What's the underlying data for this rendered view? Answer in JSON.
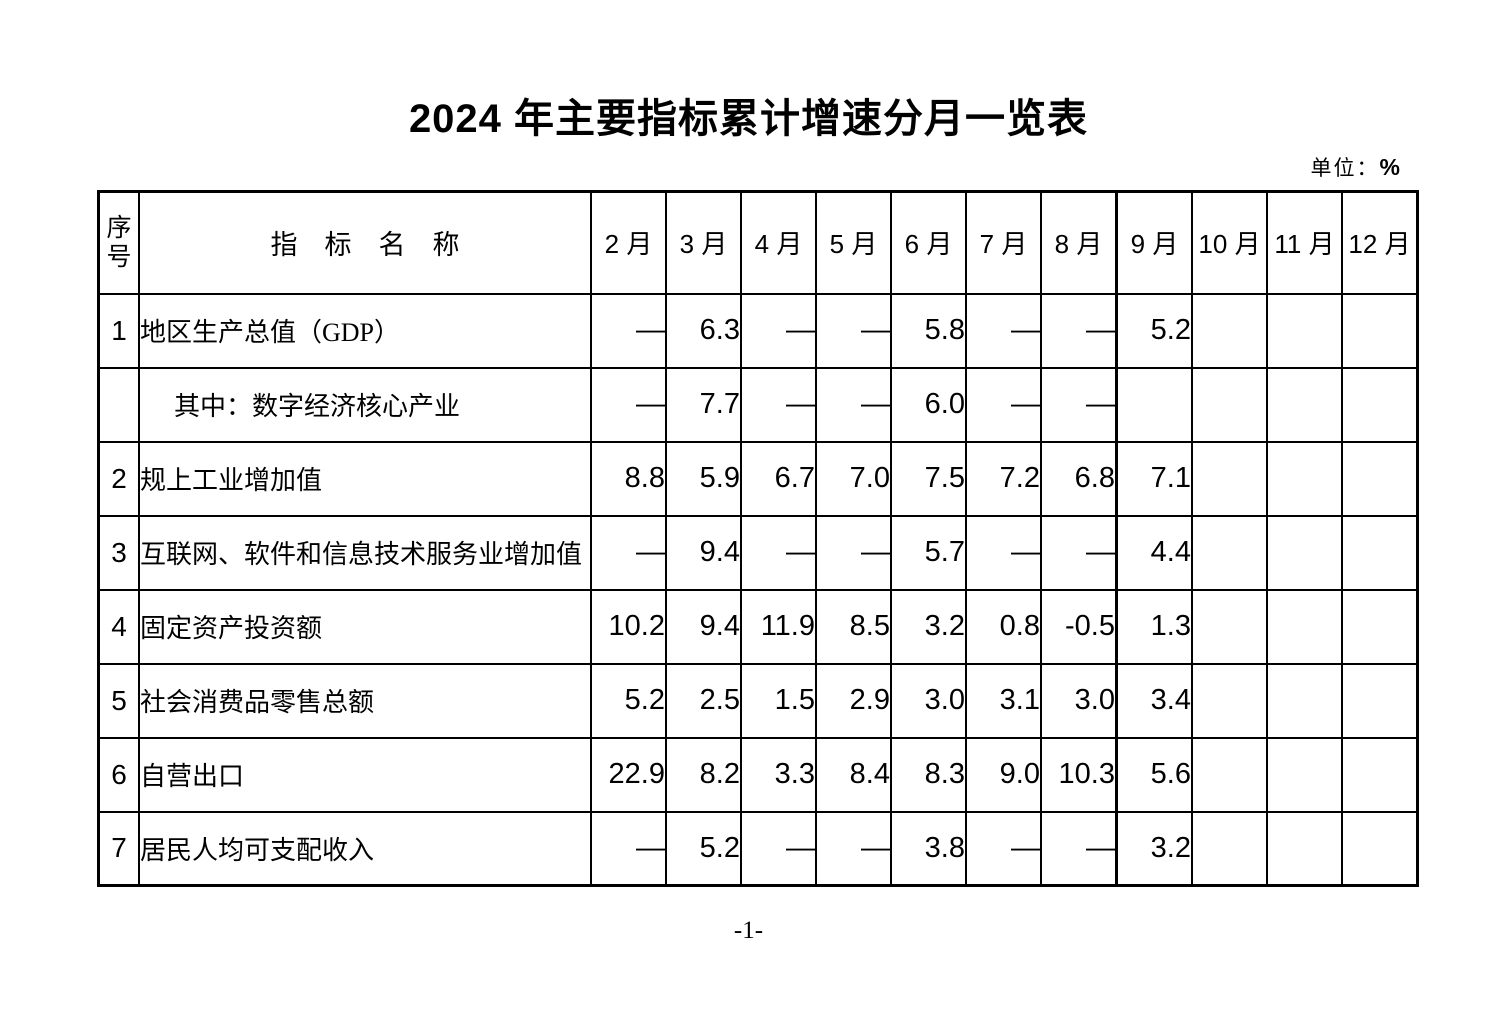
{
  "page": {
    "title": "2024 年主要指标累计增速分月一览表",
    "unit_label": "单位：",
    "unit_value": "%",
    "page_number": "-1-"
  },
  "table": {
    "headers": {
      "index": "序\n号",
      "indicator": "指　标　名　称",
      "months": [
        "2 月",
        "3 月",
        "4 月",
        "5 月",
        "6 月",
        "7 月",
        "8 月",
        "9 月",
        "10 月",
        "11 月",
        "12 月"
      ]
    },
    "rows": [
      {
        "no": "1",
        "indicator": "地区生产总值（GDP）",
        "indent": false,
        "values": [
          "—",
          "6.3",
          "—",
          "—",
          "5.8",
          "—",
          "—",
          "5.2",
          "",
          "",
          ""
        ]
      },
      {
        "no": "",
        "indicator": "其中：数字经济核心产业",
        "indent": true,
        "values": [
          "—",
          "7.7",
          "—",
          "—",
          "6.0",
          "—",
          "—",
          "",
          "",
          "",
          ""
        ]
      },
      {
        "no": "2",
        "indicator": "规上工业增加值",
        "indent": false,
        "values": [
          "8.8",
          "5.9",
          "6.7",
          "7.0",
          "7.5",
          "7.2",
          "6.8",
          "7.1",
          "",
          "",
          ""
        ]
      },
      {
        "no": "3",
        "indicator": "互联网、软件和信息技术服务业增加值",
        "indent": false,
        "values": [
          "—",
          "9.4",
          "—",
          "—",
          "5.7",
          "—",
          "—",
          "4.4",
          "",
          "",
          ""
        ]
      },
      {
        "no": "4",
        "indicator": "固定资产投资额",
        "indent": false,
        "values": [
          "10.2",
          "9.4",
          "11.9",
          "8.5",
          "3.2",
          "0.8",
          "-0.5",
          "1.3",
          "",
          "",
          ""
        ]
      },
      {
        "no": "5",
        "indicator": "社会消费品零售总额",
        "indent": false,
        "values": [
          "5.2",
          "2.5",
          "1.5",
          "2.9",
          "3.0",
          "3.1",
          "3.0",
          "3.4",
          "",
          "",
          ""
        ]
      },
      {
        "no": "6",
        "indicator": "自营出口",
        "indent": false,
        "values": [
          "22.9",
          "8.2",
          "3.3",
          "8.4",
          "8.3",
          "9.0",
          "10.3",
          "5.6",
          "",
          "",
          ""
        ]
      },
      {
        "no": "7",
        "indicator": "居民人均可支配收入",
        "indent": false,
        "values": [
          "—",
          "5.2",
          "—",
          "—",
          "3.8",
          "—",
          "—",
          "3.2",
          "",
          "",
          ""
        ]
      }
    ]
  }
}
